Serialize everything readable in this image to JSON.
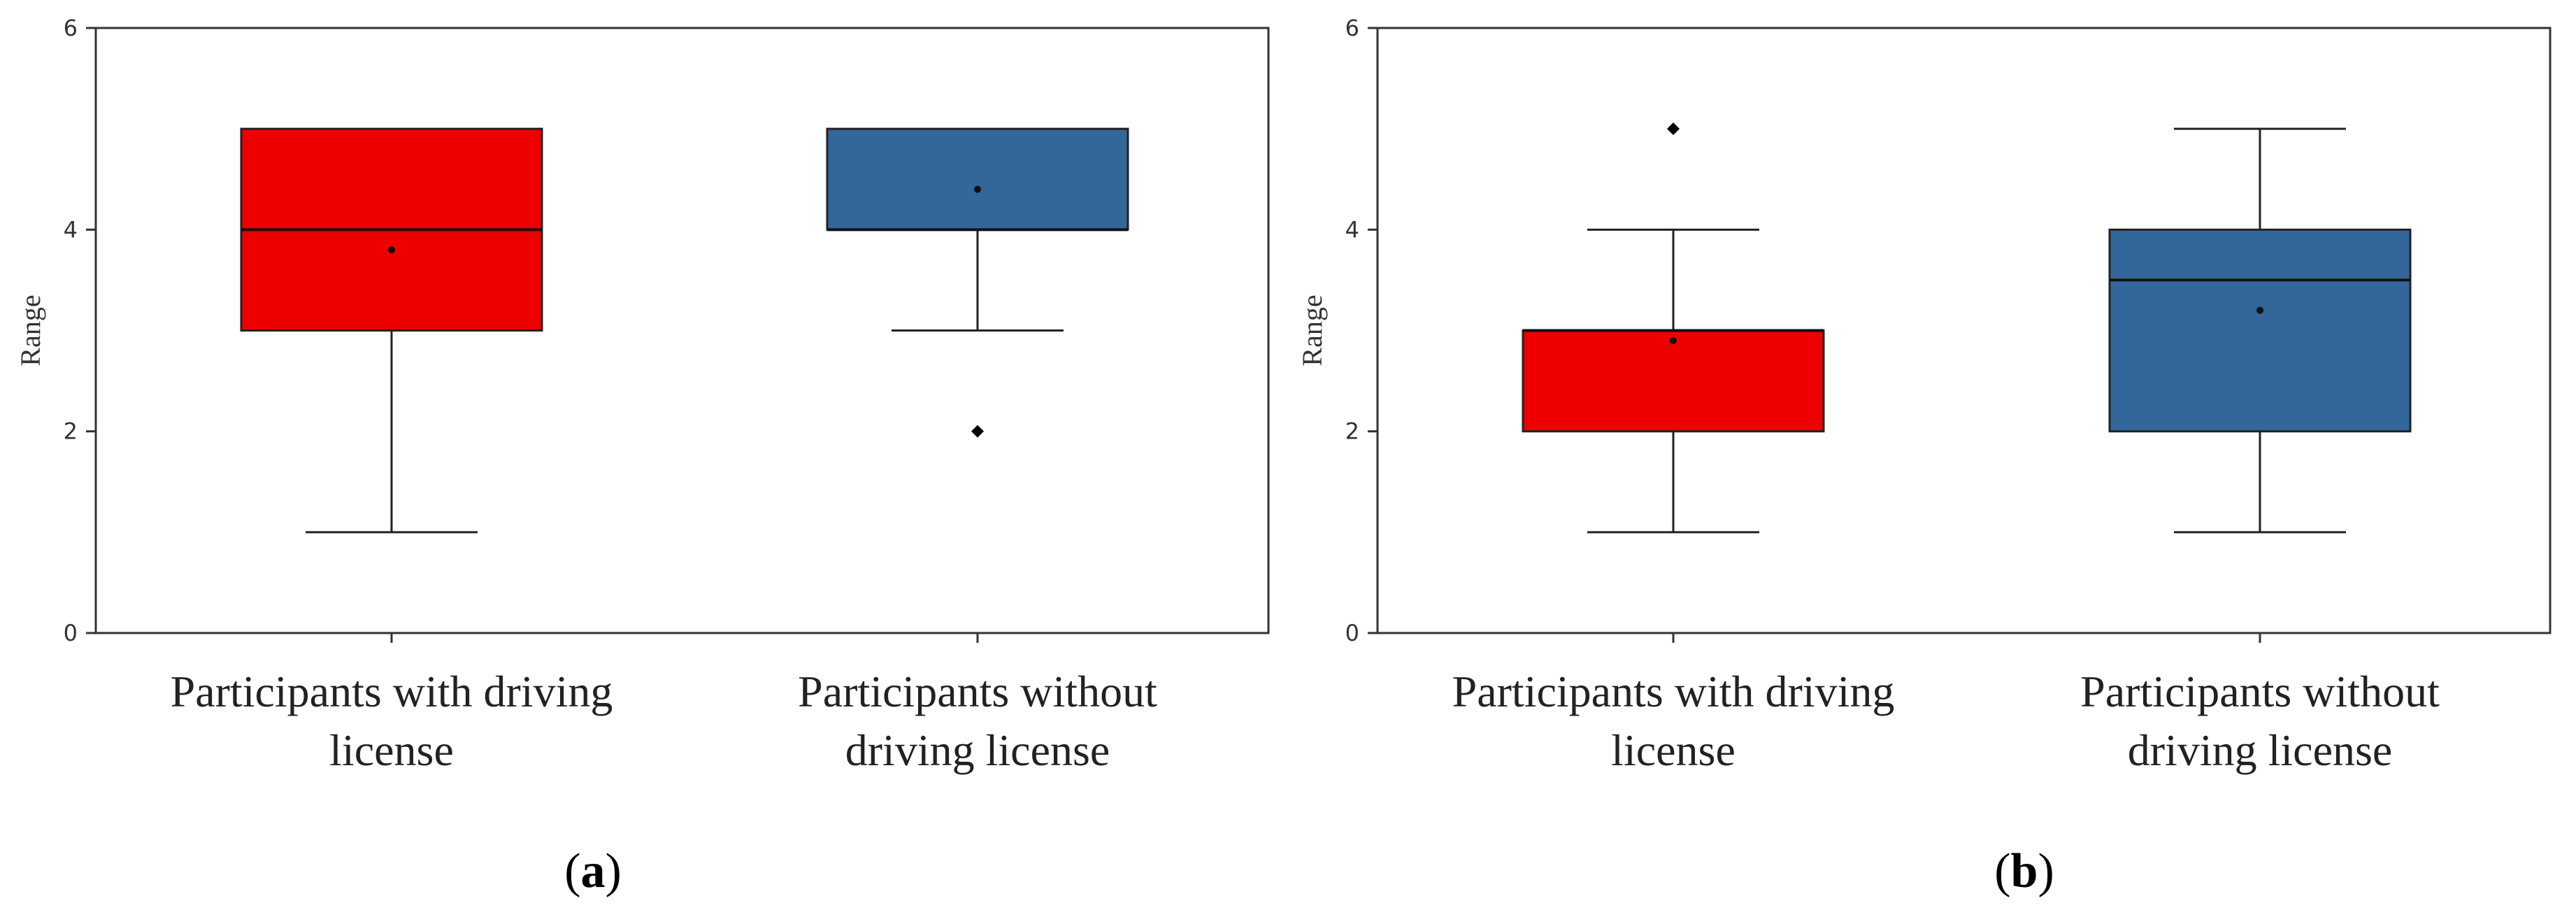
{
  "colors": {
    "with_license": "#ee0000",
    "without_license": "#336699",
    "axis": "#333333"
  },
  "chart_data": [
    {
      "type": "boxplot",
      "panel_label": "a",
      "ylabel": "Range",
      "ylim": [
        0,
        6
      ],
      "yticks": [
        0,
        2,
        4,
        6
      ],
      "categories": [
        [
          "Participants with driving",
          "license"
        ],
        [
          "Participants without",
          "driving license"
        ]
      ],
      "boxes": [
        {
          "name": "Participants with driving license",
          "min": 1,
          "q1": 3,
          "median": 4,
          "q3": 5,
          "max": 5,
          "mean": 3.8,
          "outliers": []
        },
        {
          "name": "Participants without driving license",
          "min": 3,
          "q1": 4,
          "median": 4,
          "q3": 5,
          "max": 5,
          "mean": 4.4,
          "outliers": [
            2
          ]
        }
      ]
    },
    {
      "type": "boxplot",
      "panel_label": "b",
      "ylabel": "Range",
      "ylim": [
        0,
        6
      ],
      "yticks": [
        0,
        2,
        4,
        6
      ],
      "categories": [
        [
          "Participants with driving",
          "license"
        ],
        [
          "Participants without",
          "driving license"
        ]
      ],
      "boxes": [
        {
          "name": "Participants with driving license",
          "min": 1,
          "q1": 2,
          "median": 3,
          "q3": 3,
          "max": 4,
          "mean": 2.9,
          "outliers": [
            5
          ]
        },
        {
          "name": "Participants without driving license",
          "min": 1,
          "q1": 2,
          "median": 3.5,
          "q3": 4,
          "max": 5,
          "mean": 3.2,
          "outliers": []
        }
      ]
    }
  ]
}
